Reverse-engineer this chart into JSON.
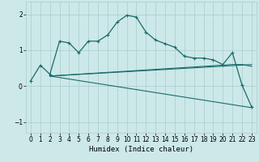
{
  "title": "",
  "xlabel": "Humidex (Indice chaleur)",
  "background_color": "#cce8e8",
  "grid_color": "#aacccc",
  "line_color": "#1a6b6b",
  "xlim": [
    -0.5,
    23.5
  ],
  "ylim": [
    -1.3,
    2.35
  ],
  "xticks": [
    0,
    1,
    2,
    3,
    4,
    5,
    6,
    7,
    8,
    9,
    10,
    11,
    12,
    13,
    14,
    15,
    16,
    17,
    18,
    19,
    20,
    21,
    22,
    23
  ],
  "yticks": [
    -1,
    0,
    1,
    2
  ],
  "line1_x": [
    0,
    1,
    2,
    3,
    4,
    5,
    6,
    7,
    8,
    9,
    10,
    11,
    12,
    13,
    14,
    15,
    16,
    17,
    18,
    19,
    20,
    21,
    22,
    23
  ],
  "line1_y": [
    0.15,
    0.58,
    0.33,
    1.25,
    1.2,
    0.93,
    1.25,
    1.25,
    1.42,
    1.78,
    1.97,
    1.92,
    1.5,
    1.28,
    1.18,
    1.08,
    0.83,
    0.78,
    0.78,
    0.73,
    0.6,
    0.93,
    0.03,
    -0.58
  ],
  "line2_x": [
    2,
    23
  ],
  "line2_y": [
    0.28,
    0.6
  ],
  "line3_x": [
    2,
    23
  ],
  "line3_y": [
    0.28,
    -0.6
  ],
  "line4_x": [
    2,
    21,
    22,
    23
  ],
  "line4_y": [
    0.28,
    0.6,
    0.6,
    0.55
  ]
}
